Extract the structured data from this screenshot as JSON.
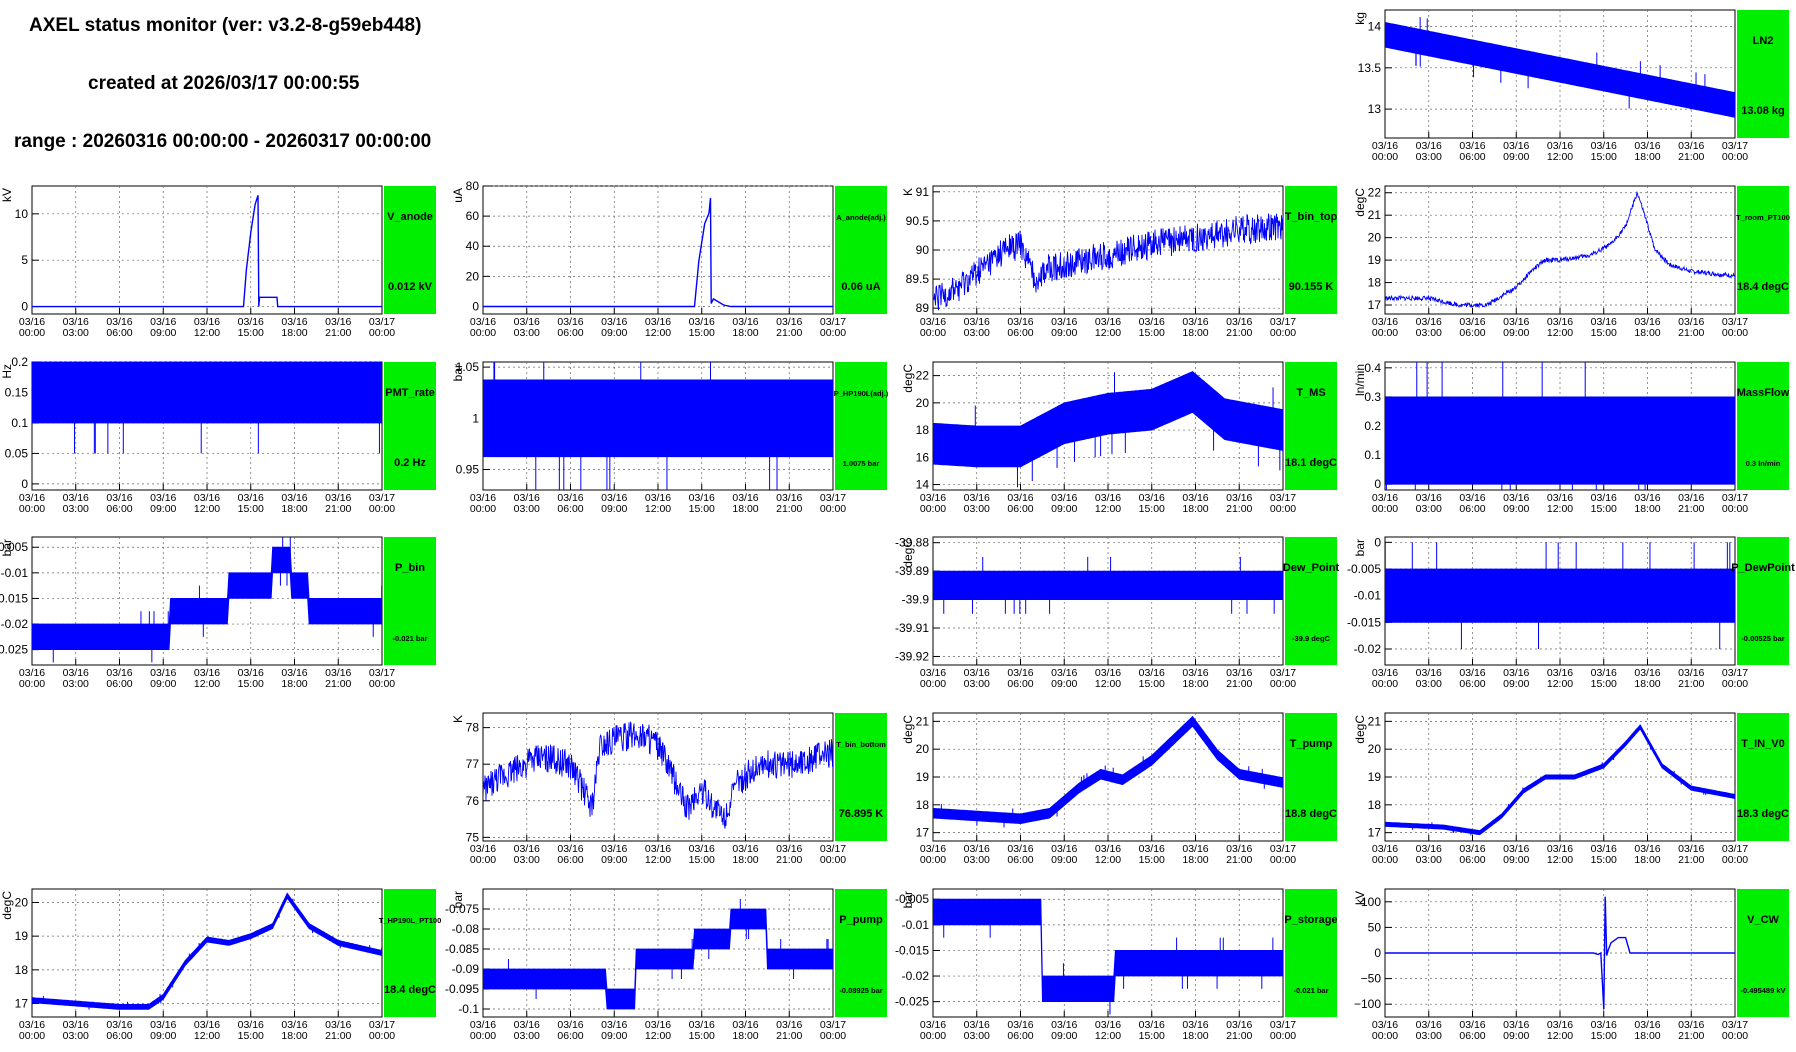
{
  "header": {
    "title": "AXEL status monitor (ver: v3.2-8-g59eb448)",
    "created": "created at 2026/03/17 00:00:55",
    "range": "range : 20260316 00:00:00 - 20260317 00:00:00"
  },
  "colors": {
    "trace": "#0000ff",
    "status_ok": "#00ee00",
    "grid": "#666666"
  },
  "time_axis": {
    "ticks": [
      "03/16\n00:00",
      "03/16\n03:00",
      "03/16\n06:00",
      "03/16\n09:00",
      "03/16\n12:00",
      "03/16\n15:00",
      "03/16\n18:00",
      "03/16\n21:00",
      "03/17\n00:00"
    ]
  },
  "chart_data": [
    {
      "id": "LN2",
      "type": "line",
      "label": "LN2",
      "unit": "kg",
      "status": "13.08 kg",
      "ylim": [
        12.65,
        14.2
      ],
      "yticks": [
        {
          "v": 13,
          "t": "13"
        },
        {
          "v": 13.5,
          "t": "13.5"
        },
        {
          "v": 14,
          "t": "14"
        }
      ],
      "style": "band",
      "series": [
        {
          "x": [
            0,
            24
          ],
          "y": [
            13.9,
            13.05
          ]
        }
      ],
      "band": 0.3
    },
    {
      "id": "V_anode",
      "type": "line",
      "label": "V_anode",
      "unit": "kV",
      "status": "0.012 kV",
      "ylim": [
        -0.8,
        13
      ],
      "yticks": [
        {
          "v": 0,
          "t": "0"
        },
        {
          "v": 5,
          "t": "5"
        },
        {
          "v": 10,
          "t": "10"
        }
      ],
      "style": "line",
      "series": [
        {
          "x": [
            0,
            14.5,
            14.7,
            15.0,
            15.3,
            15.5,
            15.55,
            15.6,
            16.8,
            16.85,
            17.1,
            24
          ],
          "y": [
            0,
            0,
            4,
            8,
            11,
            12,
            0,
            1,
            1,
            0,
            0,
            0
          ]
        }
      ]
    },
    {
      "id": "A_anode",
      "type": "line",
      "label": "A_anode(adj.)",
      "unit": "uA",
      "status": "0.06 uA",
      "ylim": [
        -5,
        80
      ],
      "yticks": [
        {
          "v": 0,
          "t": "0"
        },
        {
          "v": 20,
          "t": "20"
        },
        {
          "v": 40,
          "t": "40"
        },
        {
          "v": 60,
          "t": "60"
        },
        {
          "v": 80,
          "t": "80"
        }
      ],
      "style": "line",
      "series": [
        {
          "x": [
            0,
            14.5,
            14.8,
            15.2,
            15.5,
            15.6,
            15.65,
            15.8,
            16.5,
            17,
            24
          ],
          "y": [
            0,
            0,
            30,
            55,
            62,
            72,
            2,
            5,
            1,
            0,
            0
          ]
        }
      ]
    },
    {
      "id": "T_bin_top",
      "type": "line",
      "label": "T_bin_top",
      "unit": "K",
      "status": "90.155 K",
      "ylim": [
        88.9,
        91.1
      ],
      "yticks": [
        {
          "v": 89,
          "t": "89"
        },
        {
          "v": 89.5,
          "t": "89.5"
        },
        {
          "v": 90,
          "t": "90"
        },
        {
          "v": 90.5,
          "t": "90.5"
        },
        {
          "v": 91,
          "t": "91"
        }
      ],
      "style": "noisy",
      "noise": 0.25,
      "series": [
        {
          "x": [
            0,
            2,
            4,
            5,
            6,
            7,
            8,
            10,
            12,
            15,
            18,
            21,
            24
          ],
          "y": [
            89.1,
            89.4,
            89.8,
            90.0,
            90.1,
            89.5,
            89.7,
            89.8,
            89.9,
            90.1,
            90.2,
            90.35,
            90.4
          ]
        }
      ]
    },
    {
      "id": "T_room_PT100",
      "type": "line",
      "label": "T_room_PT100",
      "unit": "degC",
      "status": "18.4 degC",
      "ylim": [
        16.6,
        22.3
      ],
      "yticks": [
        {
          "v": 17,
          "t": "17"
        },
        {
          "v": 18,
          "t": "18"
        },
        {
          "v": 19,
          "t": "19"
        },
        {
          "v": 20,
          "t": "20"
        },
        {
          "v": 21,
          "t": "21"
        },
        {
          "v": 22,
          "t": "22"
        }
      ],
      "style": "noisy",
      "noise": 0.1,
      "series": [
        {
          "x": [
            0,
            3,
            5,
            7,
            9,
            10,
            11,
            12,
            14,
            15.5,
            16.5,
            17.3,
            17.7,
            18.5,
            19.5,
            21,
            24
          ],
          "y": [
            17.3,
            17.3,
            17.0,
            17.0,
            17.8,
            18.5,
            19.0,
            19.0,
            19.2,
            19.7,
            20.5,
            22.0,
            21.2,
            19.5,
            18.8,
            18.5,
            18.3
          ]
        }
      ]
    },
    {
      "id": "PMT_rate",
      "type": "line",
      "label": "PMT_rate",
      "unit": "Hz",
      "status": "0.2 Hz",
      "ylim": [
        -0.01,
        0.2
      ],
      "yticks": [
        {
          "v": 0,
          "t": "0"
        },
        {
          "v": 0.05,
          "t": "0.05"
        },
        {
          "v": 0.1,
          "t": "0.1"
        },
        {
          "v": 0.15,
          "t": "0.15"
        },
        {
          "v": 0.2,
          "t": "0.2"
        }
      ],
      "style": "band",
      "series": [
        {
          "x": [
            0,
            24
          ],
          "y": [
            0.15,
            0.15
          ]
        }
      ],
      "band": 0.1
    },
    {
      "id": "P_HP190L",
      "type": "line",
      "label": "P_HP190L(adj.)",
      "unit": "bar",
      "status": "1.0075 bar",
      "ylim": [
        0.93,
        1.055
      ],
      "yticks": [
        {
          "v": 0.95,
          "t": "0.95"
        },
        {
          "v": 1,
          "t": "1"
        },
        {
          "v": 1.05,
          "t": "1.05"
        }
      ],
      "style": "band",
      "series": [
        {
          "x": [
            0,
            24
          ],
          "y": [
            1.0,
            1.0
          ]
        }
      ],
      "band": 0.075
    },
    {
      "id": "T_MS",
      "type": "line",
      "label": "T_MS",
      "unit": "degC",
      "status": "18.1 degC",
      "ylim": [
        13.6,
        23
      ],
      "yticks": [
        {
          "v": 14,
          "t": "14"
        },
        {
          "v": 16,
          "t": "16"
        },
        {
          "v": 18,
          "t": "18"
        },
        {
          "v": 20,
          "t": "20"
        },
        {
          "v": 22,
          "t": "22"
        }
      ],
      "style": "band",
      "series": [
        {
          "x": [
            0,
            3,
            6,
            9,
            12,
            15,
            17.8,
            20,
            24
          ],
          "y": [
            17.0,
            16.8,
            16.8,
            18.5,
            19.2,
            19.5,
            20.8,
            18.8,
            18.0
          ]
        }
      ],
      "band": 3
    },
    {
      "id": "MassFlow",
      "type": "line",
      "label": "MassFlow",
      "unit": "ln/min",
      "status": "0.3 ln/min",
      "ylim": [
        -0.02,
        0.42
      ],
      "yticks": [
        {
          "v": 0,
          "t": "0"
        },
        {
          "v": 0.1,
          "t": "0.1"
        },
        {
          "v": 0.2,
          "t": "0.2"
        },
        {
          "v": 0.3,
          "t": "0.3"
        },
        {
          "v": 0.4,
          "t": "0.4"
        }
      ],
      "style": "band",
      "series": [
        {
          "x": [
            0,
            24
          ],
          "y": [
            0.15,
            0.15
          ]
        }
      ],
      "band": 0.3
    },
    {
      "id": "P_bin",
      "type": "line",
      "label": "P_bin",
      "unit": "bar",
      "status": "-0.021 bar",
      "ylim": [
        -0.028,
        -0.003
      ],
      "yticks": [
        {
          "v": -0.025,
          "t": "-0.025"
        },
        {
          "v": -0.02,
          "t": "-0.02"
        },
        {
          "v": -0.015,
          "t": "-0.015"
        },
        {
          "v": -0.01,
          "t": "-0.01"
        },
        {
          "v": -0.005,
          "t": "-0.005"
        }
      ],
      "style": "steps",
      "band": 0.005,
      "series": [
        {
          "x": [
            0,
            9.5,
            9.5,
            13.5,
            13.5,
            16.5,
            16.5,
            17.8,
            17.8,
            19,
            19,
            24
          ],
          "y": [
            -0.0225,
            -0.0225,
            -0.0175,
            -0.0175,
            -0.0125,
            -0.0125,
            -0.0075,
            -0.0075,
            -0.0125,
            -0.0125,
            -0.0175,
            -0.0175
          ]
        }
      ]
    },
    {
      "id": "Dew_Point",
      "type": "line",
      "label": "Dew_Point",
      "unit": "degC",
      "status": "-39.9 degC",
      "ylim": [
        -39.923,
        -39.878
      ],
      "yticks": [
        {
          "v": -39.92,
          "t": "-39.92"
        },
        {
          "v": -39.91,
          "t": "-39.91"
        },
        {
          "v": -39.9,
          "t": "-39.9"
        },
        {
          "v": -39.89,
          "t": "-39.89"
        },
        {
          "v": -39.88,
          "t": "-39.88"
        }
      ],
      "style": "band",
      "series": [
        {
          "x": [
            0,
            24
          ],
          "y": [
            -39.895,
            -39.895
          ]
        }
      ],
      "band": 0.01
    },
    {
      "id": "P_DewPoint",
      "type": "line",
      "label": "P_DewPoint",
      "unit": "bar",
      "status": "-0.00525 bar",
      "ylim": [
        -0.023,
        0.001
      ],
      "yticks": [
        {
          "v": -0.02,
          "t": "-0.02"
        },
        {
          "v": -0.015,
          "t": "-0.015"
        },
        {
          "v": -0.01,
          "t": "-0.01"
        },
        {
          "v": -0.005,
          "t": "-0.005"
        },
        {
          "v": 0,
          "t": "0"
        }
      ],
      "style": "band",
      "series": [
        {
          "x": [
            0,
            24
          ],
          "y": [
            -0.01,
            -0.01
          ]
        }
      ],
      "band": 0.01
    },
    {
      "id": "T_bin_bottom",
      "type": "line",
      "label": "T_bin_bottom",
      "unit": "K",
      "status": "76.895 K",
      "ylim": [
        74.9,
        78.4
      ],
      "yticks": [
        {
          "v": 75,
          "t": "75"
        },
        {
          "v": 76,
          "t": "76"
        },
        {
          "v": 77,
          "t": "77"
        },
        {
          "v": 78,
          "t": "78"
        }
      ],
      "style": "noisy",
      "noise": 0.4,
      "series": [
        {
          "x": [
            0,
            2,
            4,
            6,
            7.5,
            8,
            9,
            11,
            12,
            14,
            15,
            16.5,
            17.5,
            19,
            21,
            24
          ],
          "y": [
            76.3,
            76.8,
            77.2,
            77.0,
            75.8,
            77.5,
            77.7,
            77.8,
            77.5,
            75.8,
            76.3,
            75.5,
            76.5,
            77.0,
            77.0,
            77.3
          ]
        }
      ]
    },
    {
      "id": "T_pump",
      "type": "line",
      "label": "T_pump",
      "unit": "degC",
      "status": "18.8 degC",
      "ylim": [
        16.7,
        21.3
      ],
      "yticks": [
        {
          "v": 17,
          "t": "17"
        },
        {
          "v": 18,
          "t": "18"
        },
        {
          "v": 19,
          "t": "19"
        },
        {
          "v": 20,
          "t": "20"
        },
        {
          "v": 21,
          "t": "21"
        }
      ],
      "style": "band",
      "band": 0.35,
      "series": [
        {
          "x": [
            0,
            3,
            6,
            8,
            10,
            11.5,
            13,
            15,
            17.8,
            19.5,
            21,
            24
          ],
          "y": [
            17.7,
            17.6,
            17.5,
            17.7,
            18.6,
            19.1,
            18.9,
            19.6,
            21.0,
            19.8,
            19.1,
            18.8
          ]
        }
      ]
    },
    {
      "id": "T_IN_V0",
      "type": "line",
      "label": "T_IN_V0",
      "unit": "degC",
      "status": "18.3 degC",
      "ylim": [
        16.7,
        21.3
      ],
      "yticks": [
        {
          "v": 17,
          "t": "17"
        },
        {
          "v": 18,
          "t": "18"
        },
        {
          "v": 19,
          "t": "19"
        },
        {
          "v": 20,
          "t": "20"
        },
        {
          "v": 21,
          "t": "21"
        }
      ],
      "style": "band",
      "band": 0.15,
      "series": [
        {
          "x": [
            0,
            4,
            6.5,
            8,
            9.5,
            11,
            13,
            15,
            16.5,
            17.5,
            19,
            21,
            24
          ],
          "y": [
            17.3,
            17.2,
            17.0,
            17.6,
            18.5,
            19.0,
            19.0,
            19.4,
            20.2,
            20.8,
            19.4,
            18.6,
            18.3
          ]
        }
      ]
    },
    {
      "id": "T_HP190L_PT100",
      "type": "line",
      "label": "T_HP190L_PT100",
      "unit": "degC",
      "status": "18.4 degC",
      "ylim": [
        16.6,
        20.4
      ],
      "yticks": [
        {
          "v": 17,
          "t": "17"
        },
        {
          "v": 18,
          "t": "18"
        },
        {
          "v": 19,
          "t": "19"
        },
        {
          "v": 20,
          "t": "20"
        }
      ],
      "style": "band",
      "band": 0.15,
      "series": [
        {
          "x": [
            0,
            3,
            6,
            8,
            9,
            10.5,
            12,
            13.5,
            15,
            16.5,
            17.5,
            19,
            21,
            24
          ],
          "y": [
            17.1,
            17.0,
            16.9,
            16.9,
            17.2,
            18.2,
            18.9,
            18.8,
            19.0,
            19.3,
            20.2,
            19.3,
            18.8,
            18.5
          ]
        }
      ]
    },
    {
      "id": "P_pump",
      "type": "line",
      "label": "P_pump",
      "unit": "bar",
      "status": "-0.08925 bar",
      "ylim": [
        -0.102,
        -0.07
      ],
      "yticks": [
        {
          "v": -0.1,
          "t": "-0.1"
        },
        {
          "v": -0.095,
          "t": "-0.095"
        },
        {
          "v": -0.09,
          "t": "-0.09"
        },
        {
          "v": -0.085,
          "t": "-0.085"
        },
        {
          "v": -0.08,
          "t": "-0.08"
        },
        {
          "v": -0.075,
          "t": "-0.075"
        }
      ],
      "style": "steps",
      "band": 0.005,
      "series": [
        {
          "x": [
            0,
            4,
            4,
            8.5,
            8.5,
            10.5,
            10.5,
            14.5,
            14.5,
            17,
            17,
            19.5,
            19.5,
            24
          ],
          "y": [
            -0.0925,
            -0.0925,
            -0.0925,
            -0.0925,
            -0.0975,
            -0.0975,
            -0.0875,
            -0.0875,
            -0.0825,
            -0.0825,
            -0.0775,
            -0.0775,
            -0.0875,
            -0.0875
          ]
        }
      ]
    },
    {
      "id": "P_storage",
      "type": "line",
      "label": "P_storage",
      "unit": "bar",
      "status": "-0.021 bar",
      "ylim": [
        -0.028,
        -0.003
      ],
      "yticks": [
        {
          "v": -0.025,
          "t": "-0.025"
        },
        {
          "v": -0.02,
          "t": "-0.02"
        },
        {
          "v": -0.015,
          "t": "-0.015"
        },
        {
          "v": -0.01,
          "t": "-0.01"
        },
        {
          "v": -0.005,
          "t": "-0.005"
        }
      ],
      "style": "steps",
      "band": 0.005,
      "series": [
        {
          "x": [
            0,
            7.5,
            7.5,
            12.5,
            12.5,
            24
          ],
          "y": [
            -0.0075,
            -0.0075,
            -0.0225,
            -0.0225,
            -0.0175,
            -0.0175
          ]
        }
      ]
    },
    {
      "id": "V_CW",
      "type": "line",
      "label": "V_CW",
      "unit": "kV",
      "status": "-0.495489 kV",
      "ylim": [
        -125,
        125
      ],
      "yticks": [
        {
          "v": -100,
          "t": "−100"
        },
        {
          "v": -50,
          "t": "−50"
        },
        {
          "v": 0,
          "t": "0"
        },
        {
          "v": 50,
          "t": "50"
        },
        {
          "v": 100,
          "t": "100"
        }
      ],
      "style": "line",
      "series": [
        {
          "x": [
            0,
            14.3,
            14.6,
            14.8,
            15.0,
            15.1,
            15.2,
            15.3,
            15.5,
            16.0,
            16.5,
            16.8,
            16.9,
            24
          ],
          "y": [
            0,
            0,
            -3,
            0,
            -110,
            110,
            -5,
            5,
            20,
            30,
            30,
            0,
            0,
            0
          ]
        }
      ]
    }
  ]
}
